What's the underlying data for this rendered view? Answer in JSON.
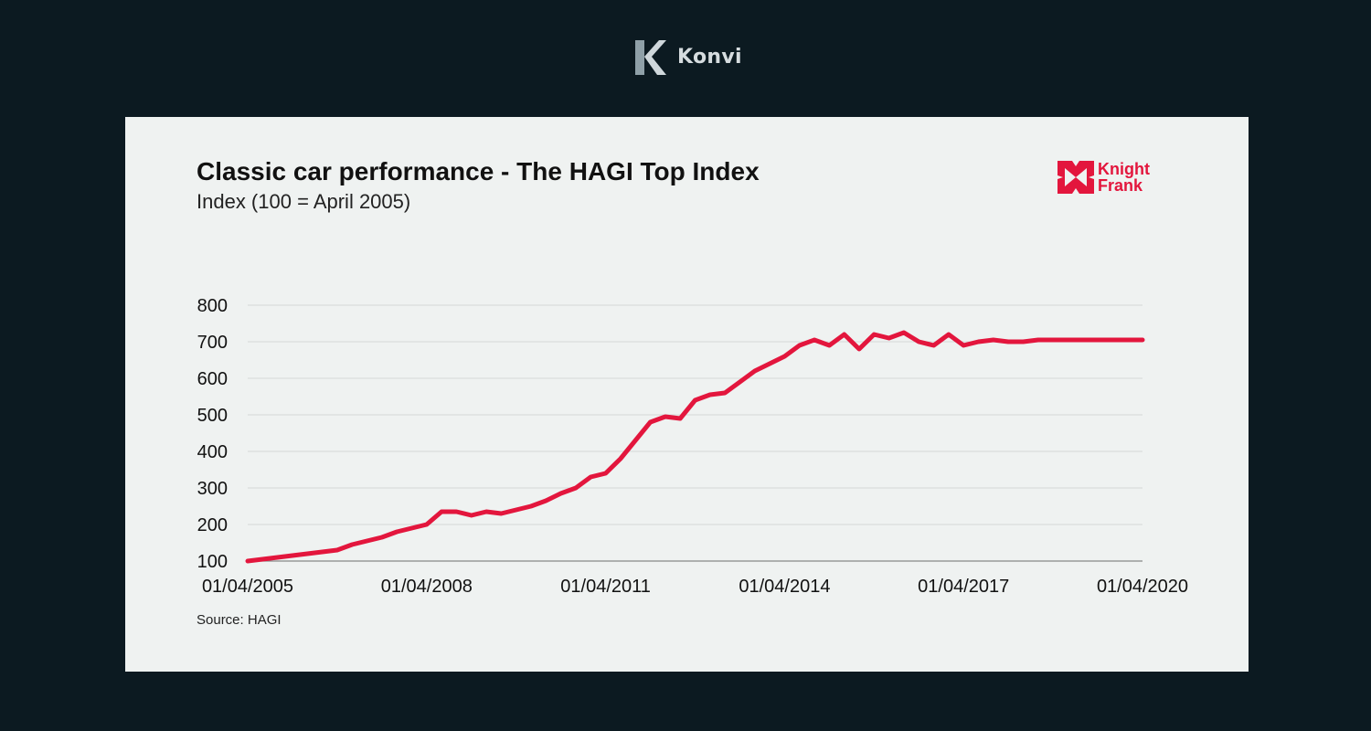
{
  "brand": {
    "name": "Konvi",
    "icon": "konvi-k-logo-icon"
  },
  "logo": {
    "line1": "Knight",
    "line2": "Frank",
    "color": "#e3163d",
    "icon": "knight-frank-logo-icon"
  },
  "chart_data": {
    "type": "line",
    "title": "Classic car performance - The HAGI Top Index",
    "subtitle": "Index (100 = April 2005)",
    "source": "Source: HAGI",
    "xlabel": "",
    "ylabel": "",
    "xlim": [
      "2005-04",
      "2020-04"
    ],
    "ylim": [
      100,
      800
    ],
    "yticks": [
      100,
      200,
      300,
      400,
      500,
      600,
      700,
      800
    ],
    "xticks": [
      "01/04/2005",
      "01/04/2008",
      "01/04/2011",
      "01/04/2014",
      "01/04/2017",
      "01/04/2020"
    ],
    "grid": true,
    "legend": "none",
    "line_color": "#e3163d",
    "series": [
      {
        "x": [
          "2005-04",
          "2005-07",
          "2005-10",
          "2006-01",
          "2006-04",
          "2006-07",
          "2006-10",
          "2007-01",
          "2007-04",
          "2007-07",
          "2007-10",
          "2008-01",
          "2008-04",
          "2008-07",
          "2008-10",
          "2009-01",
          "2009-04",
          "2009-07",
          "2009-10",
          "2010-01",
          "2010-04",
          "2010-07",
          "2010-10",
          "2011-01",
          "2011-04",
          "2011-07",
          "2011-10",
          "2012-01",
          "2012-04",
          "2012-07",
          "2012-10",
          "2013-01",
          "2013-04",
          "2013-07",
          "2013-10",
          "2014-01",
          "2014-04",
          "2014-07",
          "2014-10",
          "2015-01",
          "2015-04",
          "2015-07",
          "2015-10",
          "2016-01",
          "2016-04",
          "2016-07",
          "2016-10",
          "2017-01",
          "2017-04",
          "2017-07",
          "2017-10",
          "2018-01",
          "2018-04",
          "2018-07",
          "2018-10",
          "2019-01",
          "2019-04",
          "2019-07",
          "2019-10",
          "2020-01",
          "2020-04"
        ],
        "values": [
          100,
          105,
          110,
          115,
          120,
          125,
          130,
          145,
          155,
          165,
          180,
          190,
          200,
          235,
          235,
          225,
          235,
          230,
          240,
          250,
          265,
          285,
          300,
          330,
          340,
          380,
          430,
          480,
          495,
          490,
          540,
          555,
          560,
          590,
          620,
          640,
          660,
          690,
          705,
          690,
          720,
          680,
          720,
          710,
          725,
          700,
          690,
          720,
          690,
          700,
          705,
          700,
          700,
          705,
          705,
          705,
          705,
          705,
          705,
          705,
          705
        ]
      }
    ]
  }
}
